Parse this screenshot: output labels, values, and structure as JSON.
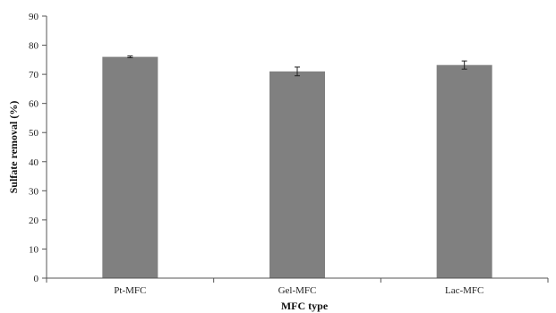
{
  "chart_data": {
    "type": "bar",
    "categories": [
      "Pt-MFC",
      "Gel-MFC",
      "Lac-MFC"
    ],
    "values": [
      76.0,
      71.0,
      73.2
    ],
    "errors": [
      0.3,
      1.5,
      1.4
    ],
    "title": "",
    "xlabel": "MFC type",
    "ylabel": "Sulfate removal (%)",
    "ylim": [
      0,
      90
    ],
    "yticks": [
      "0",
      "10",
      "20",
      "30",
      "40",
      "50",
      "60",
      "70",
      "80",
      "90"
    ],
    "grid": false,
    "legend": "none",
    "bar_color": "#808080"
  }
}
